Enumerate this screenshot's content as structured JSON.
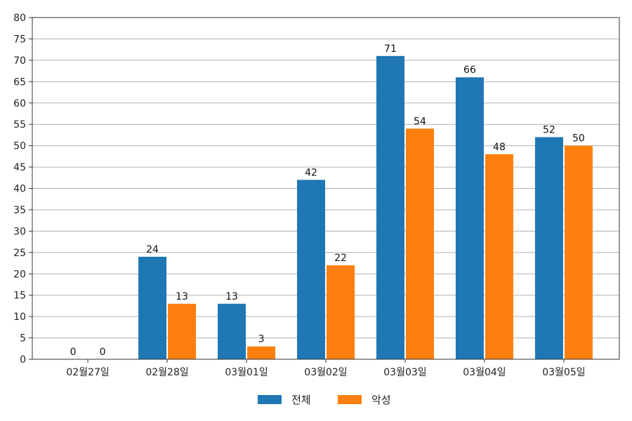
{
  "chart_data": {
    "type": "bar",
    "categories": [
      "02월27일",
      "02월28일",
      "03월01일",
      "03월02일",
      "03월03일",
      "03월04일",
      "03월05일"
    ],
    "series": [
      {
        "name": "전체",
        "color": "#1f77b4",
        "values": [
          0,
          24,
          13,
          42,
          71,
          66,
          52
        ]
      },
      {
        "name": "악성",
        "color": "#ff7f0e",
        "values": [
          0,
          13,
          3,
          22,
          54,
          48,
          50
        ]
      }
    ],
    "ylim": [
      0,
      80
    ],
    "yticks": [
      0,
      5,
      10,
      15,
      20,
      25,
      30,
      35,
      40,
      45,
      50,
      55,
      60,
      65,
      70,
      75,
      80
    ],
    "grid": "horizontal",
    "legend": "bottom-center",
    "data_labels": true
  }
}
